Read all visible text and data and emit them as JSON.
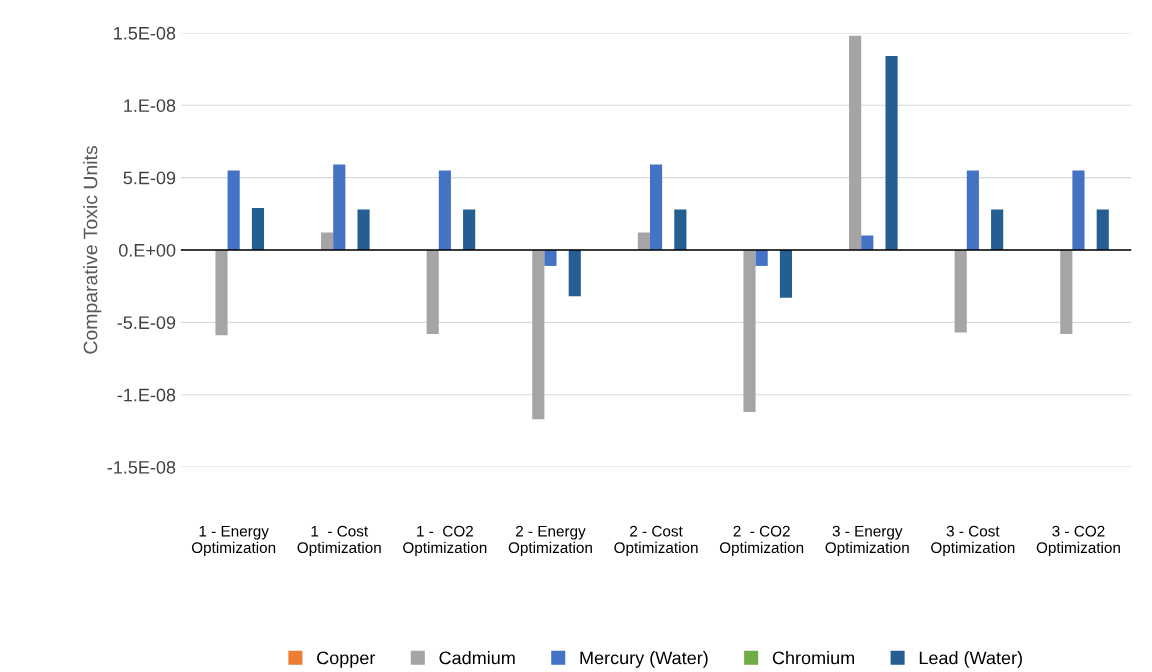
{
  "chart_data": {
    "type": "bar",
    "ylabel": "Comparative Toxic Units",
    "categories": [
      "1 - Energy\nOptimization",
      "1  - Cost\nOptimization",
      "1 -  CO2\nOptimization",
      "2 - Energy\nOptimization",
      "2 - Cost\nOptimization",
      "2  - CO2\nOptimization",
      "3 - Energy\nOptimization",
      "3 - Cost\nOptimization",
      "3 - CO2\nOptimization"
    ],
    "series": [
      {
        "name": "Copper",
        "color": "#ed7d31",
        "values": [
          0,
          0,
          0,
          0,
          0,
          0,
          0,
          0,
          0
        ]
      },
      {
        "name": "Cadmium",
        "color": "#a5a5a5",
        "values": [
          -5.9e-09,
          1.2e-09,
          -5.8e-09,
          -1.17e-08,
          1.2e-09,
          -1.12e-08,
          1.48e-08,
          -5.7e-09,
          -5.8e-09
        ]
      },
      {
        "name": "Mercury (Water)",
        "color": "#4472c4",
        "values": [
          5.5e-09,
          5.9e-09,
          5.5e-09,
          -1.1e-09,
          5.9e-09,
          -1.1e-09,
          1e-09,
          5.5e-09,
          5.5e-09
        ]
      },
      {
        "name": "Chromium",
        "color": "#70ad47",
        "values": [
          0,
          0,
          0,
          0,
          0,
          0,
          0,
          0,
          0
        ]
      },
      {
        "name": "Lead (Water)",
        "color": "#255e91",
        "values": [
          2.9e-09,
          2.8e-09,
          2.8e-09,
          -3.2e-09,
          2.8e-09,
          -3.3e-09,
          1.34e-08,
          2.8e-09,
          2.8e-09
        ]
      }
    ],
    "ylim": [
      -1.5e-08,
      1.5e-08
    ],
    "yticks": [
      {
        "value": -1.5e-08,
        "label": "-1.5E-08"
      },
      {
        "value": -1e-08,
        "label": "-1.E-08"
      },
      {
        "value": -5e-09,
        "label": "-5.E-09"
      },
      {
        "value": 0,
        "label": "0.E+00"
      },
      {
        "value": 5e-09,
        "label": "5.E-09"
      },
      {
        "value": 1e-08,
        "label": "1.E-08"
      },
      {
        "value": 1.5e-08,
        "label": "1.5E-08"
      }
    ],
    "ref_lines": [
      {
        "axis": "y",
        "value": 0,
        "color": "#000000"
      }
    ],
    "grid": "y",
    "legend": "bottom"
  }
}
